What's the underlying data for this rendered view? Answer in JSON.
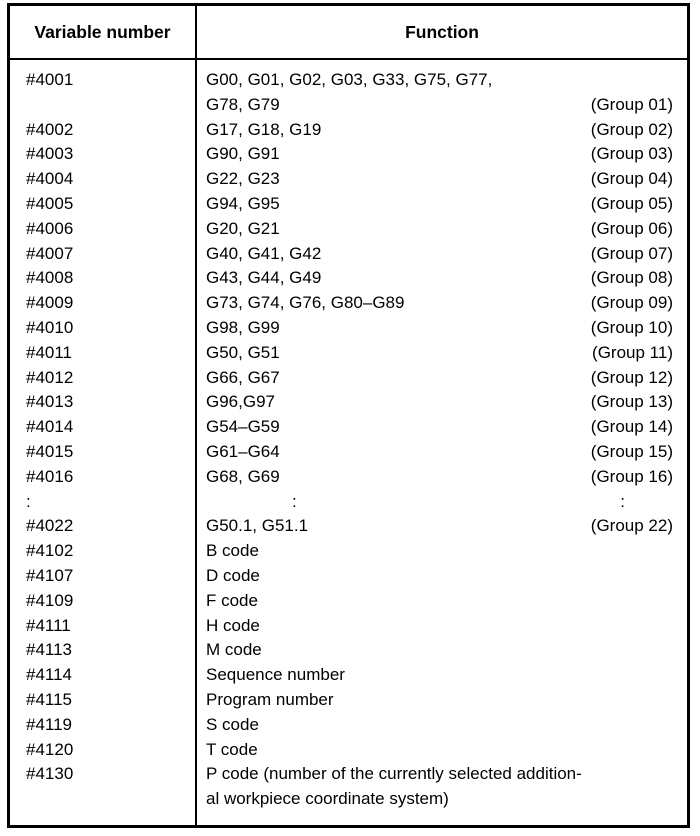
{
  "colors": {
    "page_background": "#ffffff",
    "table_border": "#000000",
    "text": "#000000"
  },
  "table": {
    "headers": {
      "variable": "Variable number",
      "function": "Function"
    },
    "rows": [
      {
        "v": "#4001",
        "f": "G00, G01, G02, G03, G33, G75, G77,",
        "g": ""
      },
      {
        "v": "",
        "f": "G78, G79",
        "g": "(Group 01)"
      },
      {
        "v": "#4002",
        "f": "G17, G18, G19",
        "g": "(Group 02)"
      },
      {
        "v": "#4003",
        "f": "G90, G91",
        "g": "(Group 03)"
      },
      {
        "v": "#4004",
        "f": "G22, G23",
        "g": "(Group 04)"
      },
      {
        "v": "#4005",
        "f": "G94, G95",
        "g": "(Group 05)"
      },
      {
        "v": "#4006",
        "f": "G20, G21",
        "g": "(Group 06)"
      },
      {
        "v": "#4007",
        "f": "G40, G41, G42",
        "g": "(Group 07)"
      },
      {
        "v": "#4008",
        "f": "G43, G44, G49",
        "g": "(Group 08)"
      },
      {
        "v": "#4009",
        "f": "G73, G74, G76, G80–G89",
        "g": "(Group 09)"
      },
      {
        "v": "#4010",
        "f": "G98, G99",
        "g": "(Group 10)"
      },
      {
        "v": "#4011",
        "f": "G50, G51",
        "g": "(Group 11)"
      },
      {
        "v": "#4012",
        "f": "G66, G67",
        "g": "(Group 12)"
      },
      {
        "v": "#4013",
        "f": "G96,G97",
        "g": "(Group 13)"
      },
      {
        "v": "#4014",
        "f": "G54–G59",
        "g": "(Group 14)"
      },
      {
        "v": "#4015",
        "f": "G61–G64",
        "g": "(Group 15)"
      },
      {
        "v": "#4016",
        "f": "G68, G69",
        "g": "(Group 16)"
      },
      {
        "v": ":",
        "f": ":",
        "g": ":",
        "dots": true
      },
      {
        "v": "#4022",
        "f": "G50.1, G51.1",
        "g": "(Group 22)"
      },
      {
        "v": "#4102",
        "f": "B code",
        "g": ""
      },
      {
        "v": "#4107",
        "f": "D code",
        "g": ""
      },
      {
        "v": "#4109",
        "f": "F code",
        "g": ""
      },
      {
        "v": "#4111",
        "f": "H code",
        "g": ""
      },
      {
        "v": "#4113",
        "f": "M code",
        "g": ""
      },
      {
        "v": "#4114",
        "f": "Sequence number",
        "g": ""
      },
      {
        "v": "#4115",
        "f": "Program number",
        "g": ""
      },
      {
        "v": "#4119",
        "f": "S code",
        "g": ""
      },
      {
        "v": "#4120",
        "f": "T code",
        "g": ""
      },
      {
        "v": "#4130",
        "f": "P code (number of the currently selected addition-",
        "g": ""
      },
      {
        "v": "",
        "f": "al workpiece coordinate system)",
        "g": ""
      }
    ]
  }
}
